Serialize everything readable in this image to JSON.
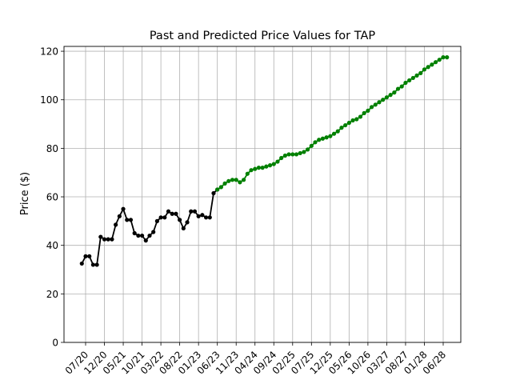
{
  "chart_data": {
    "type": "line",
    "title": "Past and Predicted Price Values for TAP",
    "xlabel": "",
    "ylabel": "Price ($)",
    "ylim": [
      0,
      122
    ],
    "yticks": [
      0,
      20,
      40,
      60,
      80,
      100,
      120
    ],
    "xtick_labels": [
      "07/20",
      "12/20",
      "05/21",
      "10/21",
      "03/22",
      "08/22",
      "01/23",
      "06/23",
      "11/23",
      "04/24",
      "09/24",
      "02/25",
      "07/25",
      "12/25",
      "05/26",
      "10/26",
      "03/27",
      "08/27",
      "01/28",
      "06/28"
    ],
    "grid": true,
    "legend": "none",
    "series": [
      {
        "role": "past",
        "color": "#000000",
        "x": [
          "2020-06",
          "2020-07",
          "2020-08",
          "2020-09",
          "2020-10",
          "2020-11",
          "2020-12",
          "2021-01",
          "2021-02",
          "2021-03",
          "2021-04",
          "2021-05",
          "2021-06",
          "2021-07",
          "2021-08",
          "2021-09",
          "2021-10",
          "2021-11",
          "2021-12",
          "2022-01",
          "2022-02",
          "2022-03",
          "2022-04",
          "2022-05",
          "2022-06",
          "2022-07",
          "2022-08",
          "2022-09",
          "2022-10",
          "2022-11",
          "2022-12",
          "2023-01",
          "2023-02",
          "2023-03",
          "2023-04",
          "2023-05",
          "2023-06"
        ],
        "values": [
          32.5,
          35.5,
          35.5,
          32,
          32,
          43.5,
          42.5,
          42.5,
          42.5,
          48.5,
          52,
          55,
          50.5,
          50.5,
          45,
          44,
          44,
          42,
          44,
          45.5,
          50,
          51.5,
          51.5,
          54,
          53,
          53,
          50.5,
          47,
          49.5,
          54,
          54,
          52,
          52.5,
          51.5,
          51.5,
          61.5,
          63
        ]
      },
      {
        "role": "predicted",
        "color": "#008000",
        "x": [
          "2023-06",
          "2023-07",
          "2023-08",
          "2023-09",
          "2023-10",
          "2023-11",
          "2023-12",
          "2024-01",
          "2024-02",
          "2024-03",
          "2024-04",
          "2024-05",
          "2024-06",
          "2024-07",
          "2024-08",
          "2024-09",
          "2024-10",
          "2024-11",
          "2024-12",
          "2025-01",
          "2025-02",
          "2025-03",
          "2025-04",
          "2025-05",
          "2025-06",
          "2025-07",
          "2025-08",
          "2025-09",
          "2025-10",
          "2025-11",
          "2025-12",
          "2026-01",
          "2026-02",
          "2026-03",
          "2026-04",
          "2026-05",
          "2026-06",
          "2026-07",
          "2026-08",
          "2026-09",
          "2026-10",
          "2026-11",
          "2026-12",
          "2027-01",
          "2027-02",
          "2027-03",
          "2027-04",
          "2027-05",
          "2027-06",
          "2027-07",
          "2027-08",
          "2027-09",
          "2027-10",
          "2027-11",
          "2027-12",
          "2028-01",
          "2028-02",
          "2028-03",
          "2028-04",
          "2028-05",
          "2028-06",
          "2028-07"
        ],
        "values": [
          63,
          64,
          65.5,
          66.5,
          67,
          67,
          66,
          67,
          69.5,
          71,
          71.5,
          72,
          72,
          72.5,
          73,
          73.5,
          74.5,
          76,
          77,
          77.5,
          77.5,
          77.5,
          78,
          78.5,
          79.5,
          81,
          82.5,
          83.5,
          84,
          84.5,
          85,
          86,
          87,
          88.5,
          89.5,
          90.5,
          91.5,
          92,
          93,
          94.5,
          95.5,
          97,
          98,
          99,
          100,
          101,
          102,
          103,
          104.5,
          105.5,
          107,
          108,
          109,
          110,
          111,
          112.5,
          113.5,
          114.5,
          115.5,
          116.5,
          117.5,
          117.5
        ]
      }
    ]
  }
}
